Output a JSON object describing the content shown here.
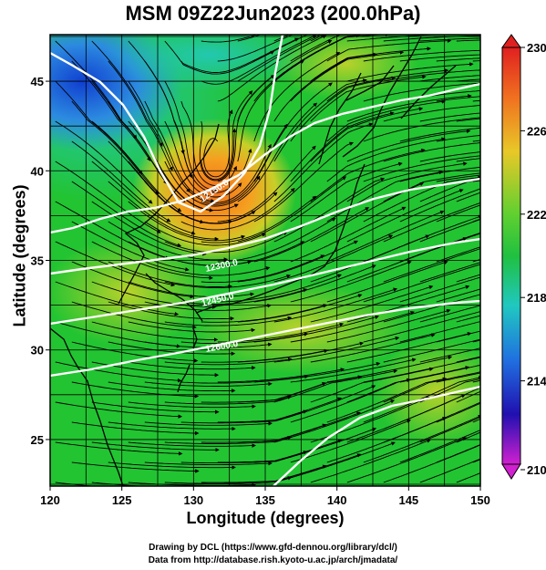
{
  "title": "MSM 09Z22Jun2023 (200.0hPa)",
  "map": {
    "xlabel": "Longitude (degrees)",
    "ylabel": "Latitude  (degrees)",
    "lon_range": [
      120,
      150
    ],
    "lat_range": [
      22.4,
      47.6
    ],
    "x_ticks": [
      "120",
      "125",
      "130",
      "135",
      "140",
      "145",
      "150"
    ],
    "y_ticks": [
      "25",
      "30",
      "35",
      "40",
      "45"
    ],
    "contour_labels": [
      "12150.0",
      "12300.0",
      "12450.0",
      "12600.0"
    ],
    "colors": {
      "warm_core": "#f08a1e",
      "field_main": "#22c432",
      "cold_nw": "#1565d8",
      "contour": "#ffffff",
      "streamline": "#000000"
    }
  },
  "colorbar": {
    "ticks": [
      "230",
      "226",
      "222",
      "218",
      "214",
      "210"
    ],
    "range": [
      210,
      230
    ]
  },
  "credit": {
    "line1": "Drawing by DCL (https://www.gfd-dennou.org/library/dcl/)",
    "line2": "Data from http://database.rish.kyoto-u.ac.jp/arch/jmadata/"
  }
}
